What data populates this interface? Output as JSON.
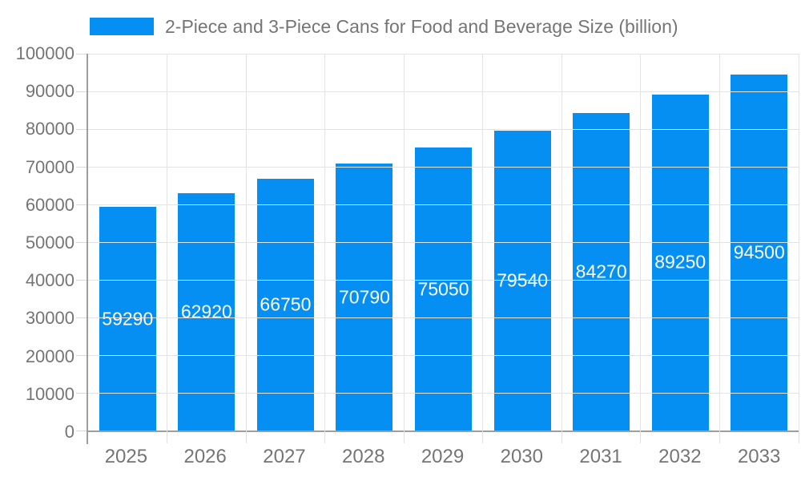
{
  "legend": {
    "series_label": "2-Piece and 3-Piece Cans for Food and Beverage Size (billion)"
  },
  "chart_data": {
    "type": "bar",
    "title": "2-Piece and 3-Piece Cans for Food and Beverage Size (billion)",
    "categories": [
      "2025",
      "2026",
      "2027",
      "2028",
      "2029",
      "2030",
      "2031",
      "2032",
      "2033"
    ],
    "values": [
      59290,
      62920,
      66750,
      70790,
      75050,
      79540,
      84270,
      89250,
      94500
    ],
    "xlabel": "",
    "ylabel": "",
    "ylim": [
      0,
      100000
    ],
    "ytick_step": 10000,
    "ytick_labels": [
      "0",
      "10000",
      "20000",
      "30000",
      "40000",
      "50000",
      "60000",
      "70000",
      "80000",
      "90000",
      "100000"
    ],
    "grid": true,
    "legend_position": "top-left",
    "value_labels_inside_bars": true,
    "colors": {
      "bar": "#058ff2",
      "bar_value_text": "#ffffff",
      "axis_text": "#757575",
      "gridline": "#e3e3e3",
      "axis_line": "#9e9e9e",
      "background": "#ffffff"
    }
  }
}
